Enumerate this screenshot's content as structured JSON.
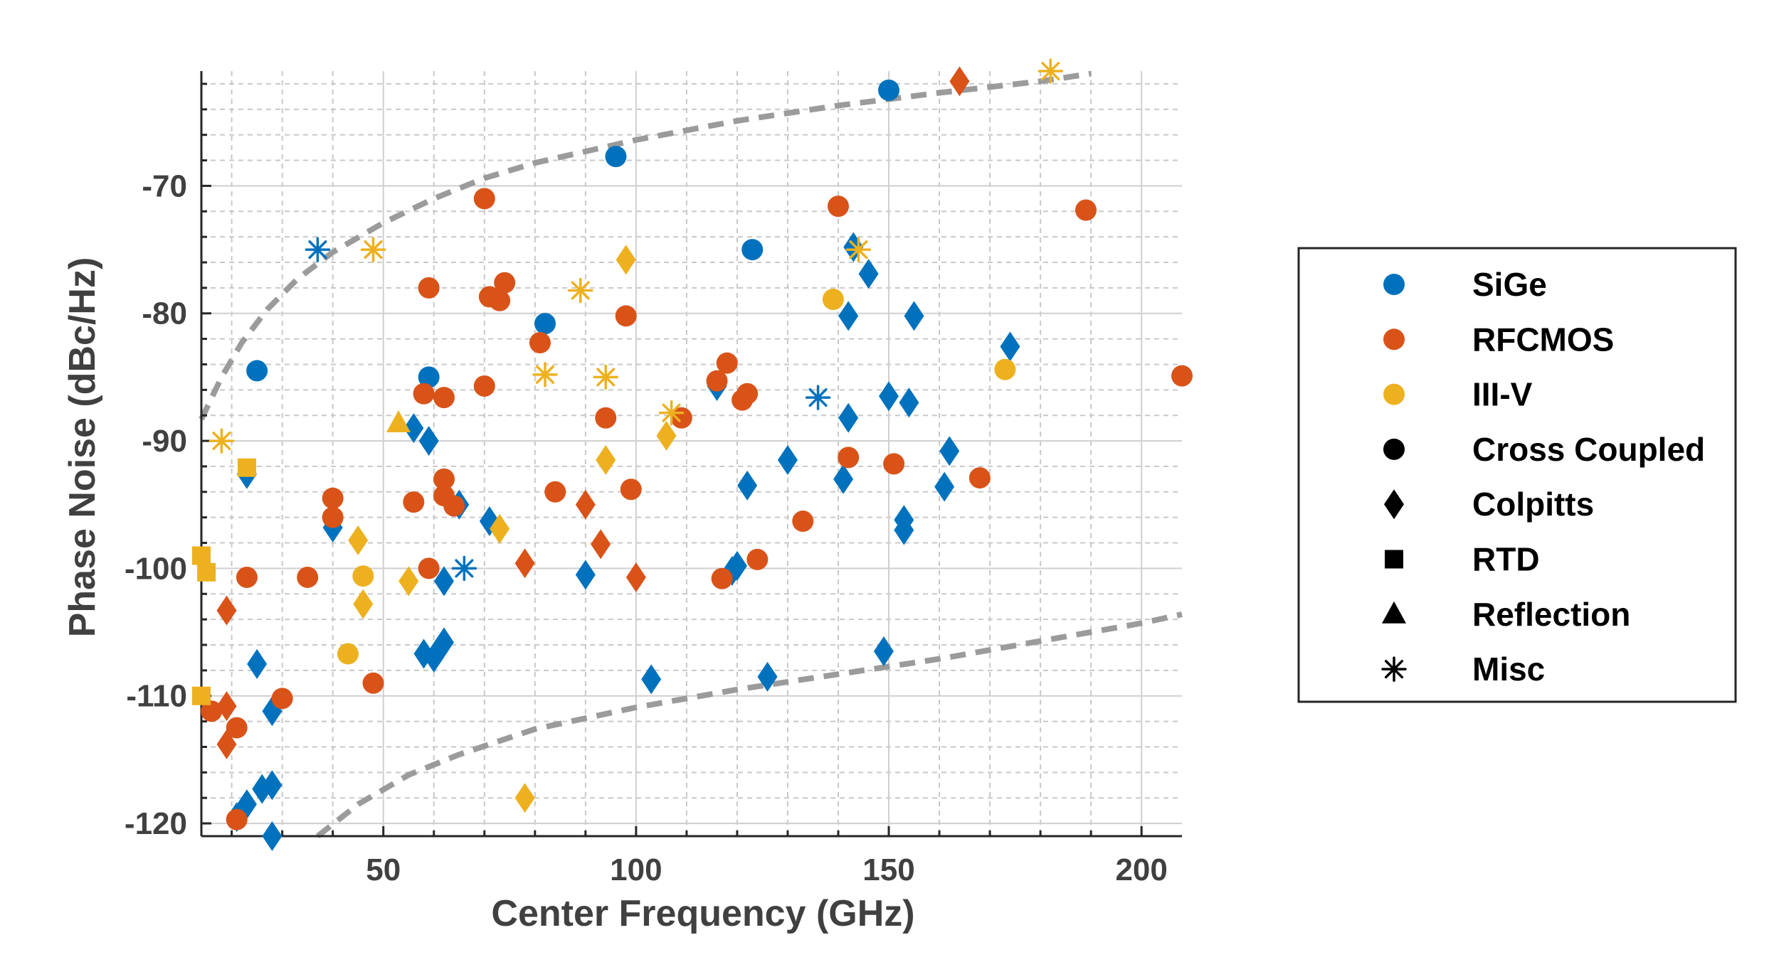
{
  "colors": {
    "SiGe": "#0072BD",
    "RFCMOS": "#D95319",
    "III-V": "#EDB120",
    "trend": "#9b9b9b",
    "grid": "#c8c8c8",
    "axis": "#262626",
    "text": "#404040"
  },
  "chart_data": {
    "type": "scatter",
    "title": "",
    "xlabel": "Center Frequency (GHz)",
    "ylabel": "Phase Noise (dBc/Hz)",
    "xlim": [
      14,
      208
    ],
    "ylim": [
      -121,
      -61
    ],
    "xticks": [
      50,
      100,
      150,
      200
    ],
    "yticks": [
      -120,
      -110,
      -100,
      -90,
      -80,
      -70
    ],
    "x_minor_step": 10,
    "y_minor_step": 2,
    "grid": true,
    "legend_position": "right",
    "legend": [
      {
        "label": "SiGe",
        "marker": "circle",
        "color_key": "SiGe"
      },
      {
        "label": "RFCMOS",
        "marker": "circle",
        "color_key": "RFCMOS"
      },
      {
        "label": "III-V",
        "marker": "circle",
        "color_key": "III-V"
      },
      {
        "label": "Cross Coupled",
        "marker": "circle",
        "color_key": "black"
      },
      {
        "label": "Colpitts",
        "marker": "diamond",
        "color_key": "black"
      },
      {
        "label": "RTD",
        "marker": "square",
        "color_key": "black"
      },
      {
        "label": "Reflection",
        "marker": "triangle",
        "color_key": "black"
      },
      {
        "label": "Misc",
        "marker": "asterisk",
        "color_key": "black"
      }
    ],
    "trend_lines": [
      {
        "name": "upper-bound",
        "points": [
          [
            14,
            -88.3
          ],
          [
            18,
            -85
          ],
          [
            22,
            -82.3
          ],
          [
            27,
            -79.7
          ],
          [
            33,
            -77.3
          ],
          [
            40,
            -75.2
          ],
          [
            50,
            -72.9
          ],
          [
            60,
            -71
          ],
          [
            70,
            -69.4
          ],
          [
            80,
            -68.2
          ],
          [
            90,
            -67.3
          ],
          [
            100,
            -66.4
          ],
          [
            120,
            -64.9
          ],
          [
            140,
            -63.7
          ],
          [
            160,
            -62.7
          ],
          [
            180,
            -61.8
          ],
          [
            190,
            -61.2
          ]
        ]
      },
      {
        "name": "lower-bound",
        "points": [
          [
            37,
            -121
          ],
          [
            45,
            -118.5
          ],
          [
            55,
            -116.2
          ],
          [
            65,
            -114.6
          ],
          [
            80,
            -112.6
          ],
          [
            100,
            -110.9
          ],
          [
            120,
            -109.5
          ],
          [
            140,
            -108.3
          ],
          [
            160,
            -107.1
          ],
          [
            180,
            -105.7
          ],
          [
            200,
            -104.3
          ],
          [
            208,
            -103.6
          ]
        ]
      }
    ],
    "series": [
      {
        "name": "SiGe Cross Coupled",
        "tech": "SiGe",
        "topology": "Cross Coupled",
        "points": [
          [
            25,
            -84.5
          ],
          [
            59,
            -85
          ],
          [
            82,
            -80.8
          ],
          [
            96,
            -67.7
          ],
          [
            123,
            -75
          ],
          [
            150,
            -62.5
          ]
        ]
      },
      {
        "name": "SiGe Colpitts",
        "tech": "SiGe",
        "topology": "Colpitts",
        "points": [
          [
            23,
            -92.6
          ],
          [
            25,
            -107.5
          ],
          [
            28,
            -111.2
          ],
          [
            21,
            -119.5
          ],
          [
            23,
            -118.5
          ],
          [
            26,
            -117.3
          ],
          [
            28,
            -117
          ],
          [
            28,
            -121
          ],
          [
            40,
            -96.8
          ],
          [
            56,
            -89
          ],
          [
            59,
            -90
          ],
          [
            62,
            -101
          ],
          [
            65,
            -95
          ],
          [
            58,
            -106.7
          ],
          [
            60,
            -107
          ],
          [
            61,
            -106.4
          ],
          [
            62,
            -105.8
          ],
          [
            71,
            -96.3
          ],
          [
            90,
            -100.5
          ],
          [
            103,
            -108.7
          ],
          [
            116,
            -85.7
          ],
          [
            119,
            -100.2
          ],
          [
            120,
            -99.8
          ],
          [
            122,
            -93.5
          ],
          [
            126,
            -108.5
          ],
          [
            130,
            -91.5
          ],
          [
            141,
            -93
          ],
          [
            142,
            -80.2
          ],
          [
            142,
            -88.2
          ],
          [
            143,
            -74.8
          ],
          [
            146,
            -76.9
          ],
          [
            149,
            -106.5
          ],
          [
            150,
            -86.5
          ],
          [
            153,
            -96.2
          ],
          [
            153,
            -97
          ],
          [
            154,
            -87
          ],
          [
            155,
            -80.2
          ],
          [
            161,
            -93.6
          ],
          [
            162,
            -90.8
          ],
          [
            174,
            -82.6
          ]
        ]
      },
      {
        "name": "SiGe Misc",
        "tech": "SiGe",
        "topology": "Misc",
        "points": [
          [
            37,
            -75
          ],
          [
            66,
            -100
          ],
          [
            136,
            -86.6
          ]
        ]
      },
      {
        "name": "RFCMOS Cross Coupled",
        "tech": "RFCMOS",
        "topology": "Cross Coupled",
        "points": [
          [
            16,
            -111.2
          ],
          [
            21,
            -112.5
          ],
          [
            21,
            -119.7
          ],
          [
            23,
            -100.7
          ],
          [
            30,
            -110.2
          ],
          [
            35,
            -100.7
          ],
          [
            40,
            -94.5
          ],
          [
            40,
            -96
          ],
          [
            48,
            -109
          ],
          [
            56,
            -94.8
          ],
          [
            58,
            -86.3
          ],
          [
            59,
            -78
          ],
          [
            59,
            -100
          ],
          [
            62,
            -86.6
          ],
          [
            62,
            -93
          ],
          [
            62,
            -94.3
          ],
          [
            64,
            -95.1
          ],
          [
            70,
            -71
          ],
          [
            70,
            -85.7
          ],
          [
            71,
            -78.7
          ],
          [
            73,
            -79
          ],
          [
            74,
            -77.6
          ],
          [
            81,
            -82.3
          ],
          [
            84,
            -94
          ],
          [
            94,
            -88.2
          ],
          [
            98,
            -80.2
          ],
          [
            99,
            -93.8
          ],
          [
            109,
            -88.2
          ],
          [
            116,
            -85.3
          ],
          [
            117,
            -100.8
          ],
          [
            118,
            -83.9
          ],
          [
            121,
            -86.8
          ],
          [
            122,
            -86.3
          ],
          [
            124,
            -99.3
          ],
          [
            133,
            -96.3
          ],
          [
            140,
            -71.6
          ],
          [
            142,
            -91.3
          ],
          [
            151,
            -91.8
          ],
          [
            168,
            -92.9
          ],
          [
            189,
            -71.9
          ],
          [
            208,
            -84.9
          ]
        ]
      },
      {
        "name": "RFCMOS Colpitts",
        "tech": "RFCMOS",
        "topology": "Colpitts",
        "points": [
          [
            19,
            -103.3
          ],
          [
            19,
            -110.8
          ],
          [
            19,
            -113.8
          ],
          [
            78,
            -99.6
          ],
          [
            90,
            -95
          ],
          [
            93,
            -98.1
          ],
          [
            100,
            -100.7
          ],
          [
            164,
            -61.8
          ]
        ]
      },
      {
        "name": "III-V Cross Coupled",
        "tech": "III-V",
        "topology": "Cross Coupled",
        "points": [
          [
            43,
            -106.7
          ],
          [
            46,
            -100.6
          ],
          [
            139,
            -78.9
          ],
          [
            173,
            -84.4
          ]
        ]
      },
      {
        "name": "III-V Colpitts",
        "tech": "III-V",
        "topology": "Colpitts",
        "points": [
          [
            45,
            -97.8
          ],
          [
            46,
            -102.8
          ],
          [
            55,
            -101
          ],
          [
            73,
            -96.9
          ],
          [
            78,
            -118
          ],
          [
            94,
            -91.5
          ],
          [
            98,
            -75.8
          ],
          [
            106,
            -89.6
          ]
        ]
      },
      {
        "name": "III-V RTD",
        "tech": "III-V",
        "topology": "RTD",
        "points": [
          [
            14,
            -99
          ],
          [
            15,
            -100.3
          ],
          [
            14,
            -110
          ],
          [
            23,
            -92.1
          ]
        ]
      },
      {
        "name": "III-V Reflection",
        "tech": "III-V",
        "topology": "Reflection",
        "points": [
          [
            53,
            -88.6
          ]
        ]
      },
      {
        "name": "III-V Misc",
        "tech": "III-V",
        "topology": "Misc",
        "points": [
          [
            18,
            -90
          ],
          [
            48,
            -75
          ],
          [
            89,
            -78.2
          ],
          [
            82,
            -84.8
          ],
          [
            94,
            -85
          ],
          [
            107,
            -87.8
          ],
          [
            144,
            -75
          ],
          [
            182,
            -61
          ]
        ]
      }
    ]
  }
}
